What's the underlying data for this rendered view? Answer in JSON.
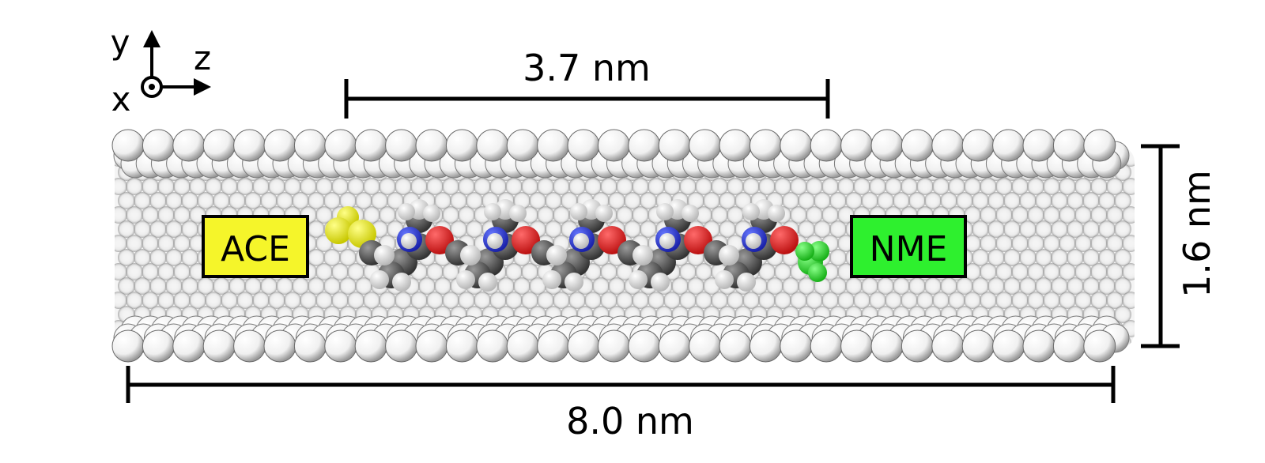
{
  "axes": {
    "y": "y",
    "z": "z",
    "x": "x"
  },
  "dimensions": {
    "segment_length": "3.7 nm",
    "tube_length": "8.0 nm",
    "tube_diameter": "1.6 nm"
  },
  "caps": {
    "left": {
      "label": "ACE",
      "color": "#f5f52a"
    },
    "right": {
      "label": "NME",
      "color": "#2ef02e"
    }
  },
  "colors": {
    "carbon": "#555555",
    "hydrogen": "#ffffff",
    "nitrogen": "#2233dd",
    "oxygen": "#ee2222",
    "ace_atom": "#f2f21e",
    "nme_atom": "#33dd33",
    "tube_atom": "#ffffff"
  }
}
